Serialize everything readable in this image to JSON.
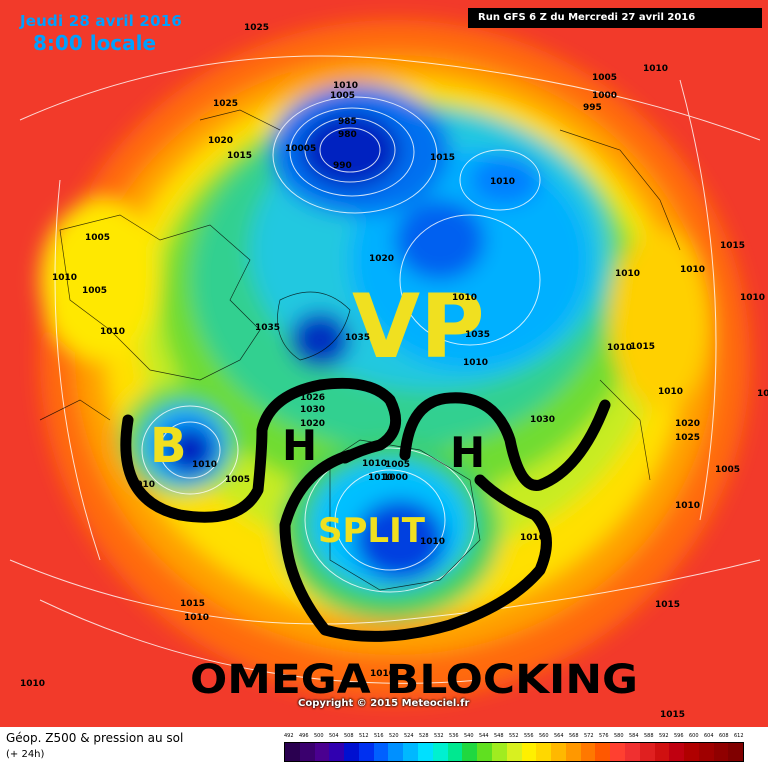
{
  "header": {
    "date": "Jeudi 28 avril 2016",
    "time": "8:00 locale",
    "run": "Run GFS 6 Z du Mercredi 27 avril 2016"
  },
  "annotations": {
    "vp": "VP",
    "b": "B",
    "h_left": "H",
    "h_right": "H",
    "split": "SPLIT",
    "omega": "OMEGA BLOCKING"
  },
  "copyright": "Copyright © 2015 Meteociel.fr",
  "legend": {
    "title": "Géop. Z500 & pression au sol",
    "subtitle": "(+ 24h)",
    "levels": [
      "492",
      "496",
      "500",
      "504",
      "508",
      "512",
      "516",
      "520",
      "524",
      "528",
      "532",
      "536",
      "540",
      "544",
      "548",
      "552",
      "556",
      "560",
      "564",
      "568",
      "572",
      "576",
      "580",
      "584",
      "588",
      "592",
      "596",
      "600",
      "604",
      "608",
      "612"
    ],
    "colors": [
      "#2a0050",
      "#3a006e",
      "#4a0090",
      "#3000b0",
      "#0010d0",
      "#0030f0",
      "#0060ff",
      "#0090ff",
      "#00b8ff",
      "#00e0ff",
      "#00f0d0",
      "#00e890",
      "#20d840",
      "#60e020",
      "#a0ec20",
      "#d8f020",
      "#fff000",
      "#ffd800",
      "#ffb800",
      "#ff9800",
      "#ff7800",
      "#ff5800",
      "#ff4030",
      "#f03030",
      "#e02020",
      "#d01010",
      "#c00010",
      "#b00000",
      "#a00000",
      "#900000",
      "#800000"
    ]
  },
  "pressure_labels": [
    "1025",
    "1025",
    "1020",
    "1015",
    "1010",
    "1005",
    "985",
    "980",
    "10005",
    "990",
    "1010",
    "1005",
    "1000",
    "995",
    "1010",
    "1005",
    "1010",
    "1005",
    "1010",
    "1020",
    "1015",
    "1010",
    "1010",
    "1010",
    "1015",
    "1035",
    "1035",
    "1010",
    "1010",
    "1010",
    "1015",
    "1020",
    "1025",
    "10105",
    "1026",
    "1030",
    "1030",
    "1020",
    "1010",
    "1005",
    "1010",
    "1010",
    "1005",
    "1010",
    "1000",
    "1010",
    "1035",
    "1010",
    "1015",
    "1010",
    "1010",
    "1010",
    "1015",
    "1010",
    "1005",
    "1010",
    "1015"
  ]
}
